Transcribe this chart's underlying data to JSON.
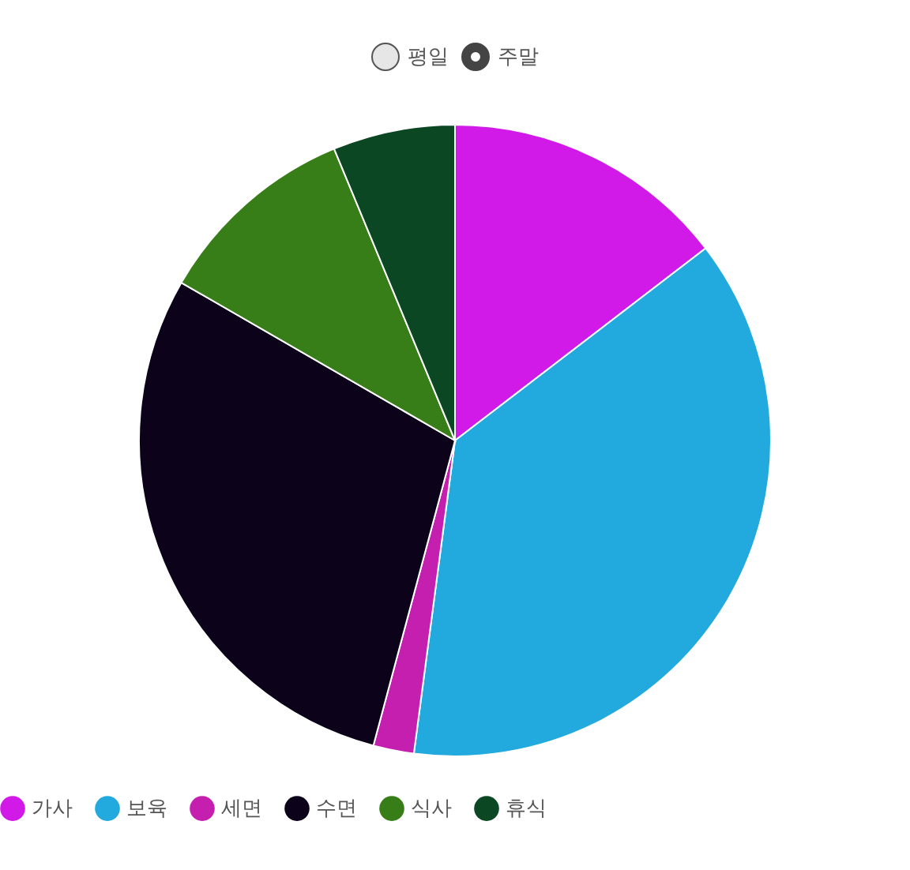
{
  "chart_data": {
    "type": "pie",
    "annotations": [
      "평일",
      "주말"
    ],
    "categories": [
      "가사",
      "보육",
      "세면",
      "수면",
      "식사",
      "휴식"
    ],
    "values": [
      14.58,
      37.5,
      2.08,
      29.17,
      10.42,
      6.25
    ],
    "colors": [
      "#d11ae8",
      "#22a9de",
      "#c51fb0",
      "#0c0219",
      "#377e19",
      "#0a4722"
    ],
    "legend": "bottom"
  }
}
